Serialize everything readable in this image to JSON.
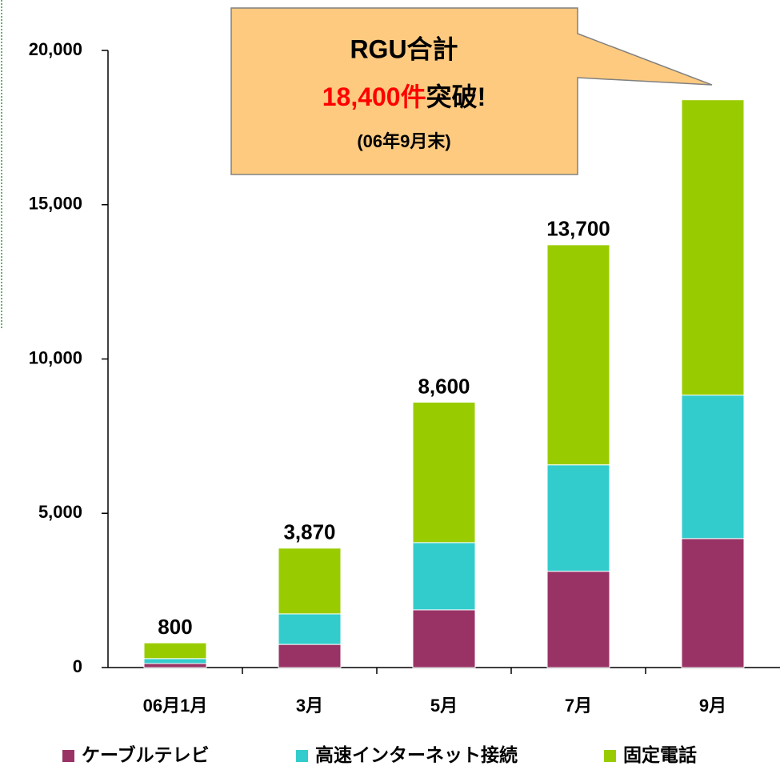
{
  "chart_data": {
    "type": "stacked_bar",
    "categories": [
      "06月1月",
      "3月",
      "5月",
      "7月",
      "9月"
    ],
    "series": [
      {
        "name": "ケーブルテレビ",
        "color": "#993366",
        "values": [
          130,
          750,
          1870,
          3120,
          4180
        ]
      },
      {
        "name": "高速インターネット接続",
        "color": "#33cccc",
        "values": [
          160,
          990,
          2180,
          3450,
          4650
        ]
      },
      {
        "name": "固定電話",
        "color": "#99cc00",
        "values": [
          510,
          2130,
          4550,
          7130,
          9570
        ]
      }
    ],
    "total_labels": [
      "800",
      "3,870",
      "8,600",
      "13,700",
      null
    ],
    "ylim": [
      0,
      20000
    ],
    "yticks": [
      0,
      {
        "value": 5000,
        "label": "5,000"
      },
      {
        "value": 10000,
        "label": "10,000"
      },
      {
        "value": 15000,
        "label": "15,000"
      },
      {
        "value": 20000,
        "label": "20,000"
      }
    ],
    "annotation": {
      "title": "RGU合計",
      "highlight": "18,400件",
      "text": "突破!",
      "note": "(06年9月末)"
    }
  }
}
